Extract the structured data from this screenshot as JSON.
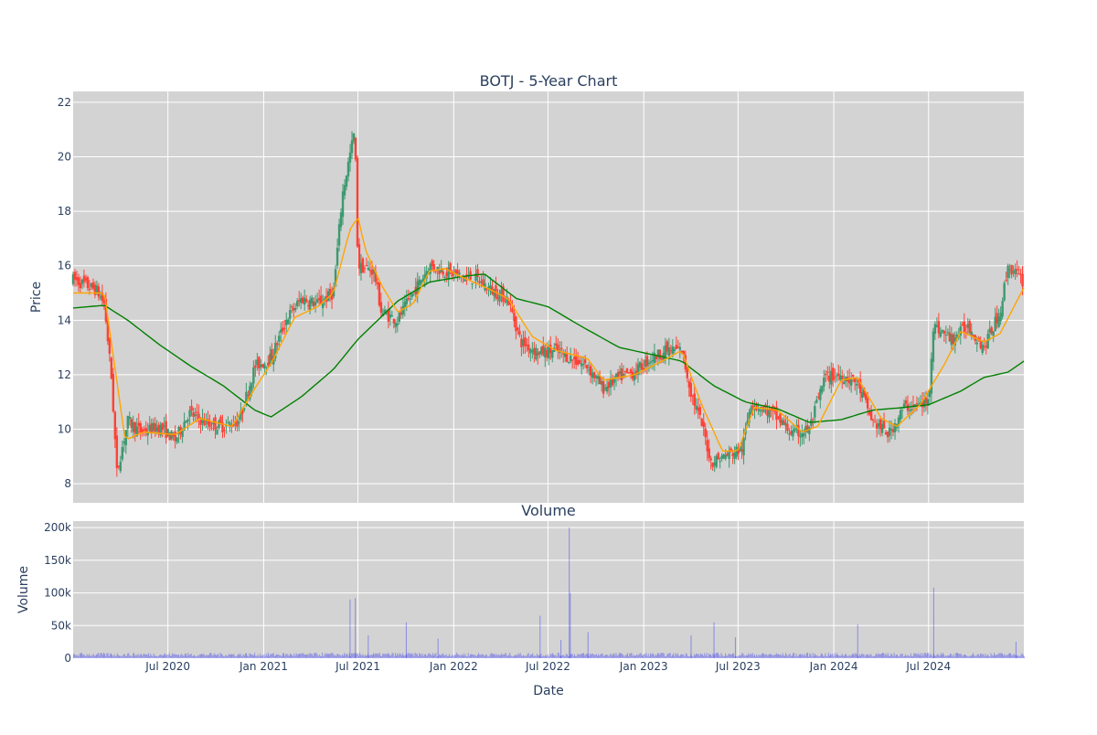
{
  "chart_data": [
    {
      "type": "candlestick",
      "title": "BOTJ - 5-Year Chart",
      "ylabel": "Price",
      "ylim": [
        7.3,
        22.4
      ],
      "yticks": [
        8,
        10,
        12,
        14,
        16,
        18,
        20,
        22
      ],
      "grid": true,
      "legend": "none",
      "colors": {
        "up": "#3d9970",
        "down": "#ff4136",
        "ma_short": "#ffa500",
        "ma_long": "#008000",
        "plot_bg": "#d3d3d3",
        "grid": "#ffffff"
      },
      "price_path": [
        [
          "2020-01-02",
          15.5
        ],
        [
          "2020-02-15",
          15.1
        ],
        [
          "2020-03-01",
          14.6
        ],
        [
          "2020-03-15",
          11.8
        ],
        [
          "2020-03-25",
          8.4
        ],
        [
          "2020-04-15",
          10.3
        ],
        [
          "2020-05-10",
          9.9
        ],
        [
          "2020-06-15",
          10.1
        ],
        [
          "2020-07-15",
          9.6
        ],
        [
          "2020-08-10",
          10.6
        ],
        [
          "2020-09-15",
          10.2
        ],
        [
          "2020-10-15",
          10.1
        ],
        [
          "2020-11-15",
          10.3
        ],
        [
          "2020-12-15",
          12.3
        ],
        [
          "2021-01-15",
          12.6
        ],
        [
          "2021-02-15",
          14.1
        ],
        [
          "2021-03-15",
          14.8
        ],
        [
          "2021-04-15",
          14.6
        ],
        [
          "2021-05-15",
          15.0
        ],
        [
          "2021-06-01",
          18.6
        ],
        [
          "2021-06-25",
          21.0
        ],
        [
          "2021-07-01",
          16.0
        ],
        [
          "2021-08-01",
          15.8
        ],
        [
          "2021-08-15",
          14.3
        ],
        [
          "2021-09-15",
          14.0
        ],
        [
          "2021-10-15",
          15.0
        ],
        [
          "2021-11-15",
          16.0
        ],
        [
          "2021-12-15",
          15.8
        ],
        [
          "2022-01-15",
          15.6
        ],
        [
          "2022-02-15",
          15.5
        ],
        [
          "2022-03-15",
          15.1
        ],
        [
          "2022-04-15",
          14.8
        ],
        [
          "2022-05-10",
          13.2
        ],
        [
          "2022-06-15",
          12.8
        ],
        [
          "2022-07-15",
          12.9
        ],
        [
          "2022-08-15",
          12.6
        ],
        [
          "2022-09-15",
          12.3
        ],
        [
          "2022-10-15",
          11.5
        ],
        [
          "2022-11-15",
          11.9
        ],
        [
          "2022-12-15",
          12.1
        ],
        [
          "2023-01-15",
          12.6
        ],
        [
          "2023-02-15",
          12.9
        ],
        [
          "2023-03-15",
          12.9
        ],
        [
          "2023-04-01",
          11.4
        ],
        [
          "2023-04-25",
          10.0
        ],
        [
          "2023-05-10",
          8.8
        ],
        [
          "2023-06-15",
          9.1
        ],
        [
          "2023-07-10",
          9.3
        ],
        [
          "2023-07-25",
          11.0
        ],
        [
          "2023-08-15",
          10.8
        ],
        [
          "2023-09-15",
          10.4
        ],
        [
          "2023-10-15",
          9.8
        ],
        [
          "2023-11-15",
          10.0
        ],
        [
          "2023-12-15",
          11.9
        ],
        [
          "2024-01-15",
          12.0
        ],
        [
          "2024-02-15",
          11.7
        ],
        [
          "2024-03-15",
          10.3
        ],
        [
          "2024-04-15",
          9.8
        ],
        [
          "2024-05-15",
          10.8
        ],
        [
          "2024-06-15",
          10.9
        ],
        [
          "2024-07-01",
          11.0
        ],
        [
          "2024-07-10",
          13.8
        ],
        [
          "2024-08-15",
          13.3
        ],
        [
          "2024-09-15",
          13.8
        ],
        [
          "2024-10-15",
          13.0
        ],
        [
          "2024-11-15",
          14.3
        ],
        [
          "2024-12-01",
          16.0
        ],
        [
          "2024-12-31",
          15.4
        ]
      ],
      "ma_short_path": [
        [
          "2020-01-02",
          15.0
        ],
        [
          "2020-03-01",
          15.0
        ],
        [
          "2020-04-10",
          9.6
        ],
        [
          "2020-05-15",
          9.9
        ],
        [
          "2020-07-15",
          9.8
        ],
        [
          "2020-09-01",
          10.4
        ],
        [
          "2020-11-01",
          10.1
        ],
        [
          "2020-12-15",
          11.5
        ],
        [
          "2021-01-15",
          12.4
        ],
        [
          "2021-03-01",
          14.1
        ],
        [
          "2021-04-15",
          14.5
        ],
        [
          "2021-05-15",
          15.0
        ],
        [
          "2021-06-15",
          17.3
        ],
        [
          "2021-07-01",
          17.8
        ],
        [
          "2021-07-15",
          16.6
        ],
        [
          "2021-08-15",
          15.3
        ],
        [
          "2021-09-15",
          14.3
        ],
        [
          "2021-10-15",
          14.6
        ],
        [
          "2021-11-15",
          15.8
        ],
        [
          "2021-12-15",
          15.9
        ],
        [
          "2022-01-15",
          15.6
        ],
        [
          "2022-03-15",
          15.1
        ],
        [
          "2022-04-15",
          14.8
        ],
        [
          "2022-06-01",
          13.4
        ],
        [
          "2022-07-15",
          12.9
        ],
        [
          "2022-09-15",
          12.6
        ],
        [
          "2022-10-15",
          11.8
        ],
        [
          "2022-12-15",
          12.0
        ],
        [
          "2023-02-15",
          12.6
        ],
        [
          "2023-03-15",
          12.9
        ],
        [
          "2023-04-20",
          11.0
        ],
        [
          "2023-06-01",
          9.2
        ],
        [
          "2023-07-01",
          9.2
        ],
        [
          "2023-08-01",
          10.8
        ],
        [
          "2023-09-15",
          10.7
        ],
        [
          "2023-11-01",
          9.9
        ],
        [
          "2023-12-01",
          10.1
        ],
        [
          "2024-01-15",
          11.8
        ],
        [
          "2024-02-15",
          11.9
        ],
        [
          "2024-04-01",
          10.4
        ],
        [
          "2024-05-01",
          10.1
        ],
        [
          "2024-06-15",
          10.9
        ],
        [
          "2024-08-01",
          12.4
        ],
        [
          "2024-09-01",
          13.6
        ],
        [
          "2024-10-15",
          13.2
        ],
        [
          "2024-11-15",
          13.5
        ],
        [
          "2024-12-31",
          15.2
        ]
      ],
      "ma_long_path": [
        [
          "2020-01-02",
          14.45
        ],
        [
          "2020-03-01",
          14.55
        ],
        [
          "2020-04-15",
          14.0
        ],
        [
          "2020-06-15",
          13.1
        ],
        [
          "2020-08-15",
          12.3
        ],
        [
          "2020-10-15",
          11.6
        ],
        [
          "2020-12-15",
          10.7
        ],
        [
          "2021-01-15",
          10.45
        ],
        [
          "2021-03-15",
          11.2
        ],
        [
          "2021-05-15",
          12.2
        ],
        [
          "2021-07-01",
          13.3
        ],
        [
          "2021-09-15",
          14.7
        ],
        [
          "2021-11-15",
          15.4
        ],
        [
          "2022-01-15",
          15.6
        ],
        [
          "2022-03-01",
          15.7
        ],
        [
          "2022-05-01",
          14.8
        ],
        [
          "2022-07-01",
          14.5
        ],
        [
          "2022-09-01",
          13.8
        ],
        [
          "2022-11-15",
          13.0
        ],
        [
          "2023-01-15",
          12.75
        ],
        [
          "2023-03-15",
          12.5
        ],
        [
          "2023-05-15",
          11.6
        ],
        [
          "2023-07-15",
          11.0
        ],
        [
          "2023-09-15",
          10.75
        ],
        [
          "2023-11-15",
          10.25
        ],
        [
          "2024-01-15",
          10.35
        ],
        [
          "2024-03-15",
          10.7
        ],
        [
          "2024-05-15",
          10.8
        ],
        [
          "2024-07-01",
          10.9
        ],
        [
          "2024-09-01",
          11.4
        ],
        [
          "2024-10-15",
          11.9
        ],
        [
          "2024-12-01",
          12.1
        ],
        [
          "2024-12-31",
          12.5
        ]
      ]
    },
    {
      "type": "bar",
      "title": "Volume",
      "xlabel": "Date",
      "ylabel": "Volume",
      "ylim": [
        0,
        210000
      ],
      "yticks": [
        0,
        50000,
        100000,
        150000,
        200000
      ],
      "ytick_labels": [
        "0",
        "50k",
        "100k",
        "150k",
        "200k"
      ],
      "grid": true,
      "colors": {
        "bar": "#0000ff"
      },
      "baseline_volume": 5000,
      "spikes": [
        [
          "2021-06-15",
          90000
        ],
        [
          "2021-06-25",
          92000
        ],
        [
          "2021-07-20",
          35000
        ],
        [
          "2021-10-01",
          55000
        ],
        [
          "2021-12-01",
          30000
        ],
        [
          "2022-06-15",
          65000
        ],
        [
          "2022-07-25",
          28000
        ],
        [
          "2022-08-10",
          200000
        ],
        [
          "2022-08-12",
          100000
        ],
        [
          "2022-09-15",
          40000
        ],
        [
          "2023-04-01",
          35000
        ],
        [
          "2023-05-15",
          55000
        ],
        [
          "2023-06-25",
          32000
        ],
        [
          "2024-02-15",
          52000
        ],
        [
          "2024-07-10",
          108000
        ],
        [
          "2024-12-15",
          25000
        ]
      ],
      "x_range": [
        "2020-01-01",
        "2024-12-31"
      ],
      "xticks": [
        "2020-07-01",
        "2021-01-01",
        "2021-07-01",
        "2022-01-01",
        "2022-07-01",
        "2023-01-01",
        "2023-07-01",
        "2024-01-01",
        "2024-07-01"
      ],
      "xtick_labels": [
        "Jul 2020",
        "Jan 2021",
        "Jul 2021",
        "Jan 2022",
        "Jul 2022",
        "Jan 2023",
        "Jul 2023",
        "Jan 2024",
        "Jul 2024"
      ]
    }
  ]
}
